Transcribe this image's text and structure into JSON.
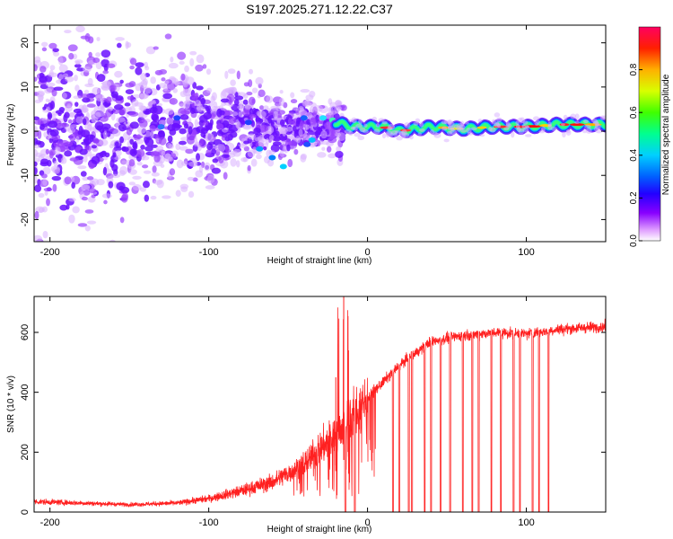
{
  "title": "S197.2025.271.12.22.C37",
  "chart_data": [
    {
      "type": "heatmap",
      "panel": "spectrogram",
      "xlabel": "Height of straight line (km)",
      "ylabel": "Frequency (Hz)",
      "xlim": [
        -210,
        150
      ],
      "ylim": [
        -25,
        24
      ],
      "xticks": [
        -200,
        -100,
        0,
        100
      ],
      "yticks": [
        -20,
        -10,
        0,
        10,
        20
      ],
      "colorbar": {
        "label": "Normalized spectral amplitude",
        "range": [
          0.0,
          1.0
        ],
        "ticks": [
          0.0,
          0.2,
          0.4,
          0.6,
          0.8
        ],
        "colors": [
          "#ffffff",
          "#e0a0ff",
          "#8800ff",
          "#2200ff",
          "#0000ff",
          "#00c8ff",
          "#00ff9a",
          "#44ff00",
          "#d8ff00",
          "#ffb000",
          "#ff0000",
          "#ff0060"
        ]
      },
      "ridge": {
        "description": "narrow band near 0-2 Hz above ~-20 km",
        "x": [
          -20,
          -10,
          0,
          10,
          20,
          40,
          60,
          80,
          100,
          120,
          150
        ],
        "freq": [
          2,
          1,
          1,
          1,
          0,
          1,
          0.5,
          1,
          1,
          1.5,
          1.5
        ]
      },
      "scatter_band": {
        "description": "broadband speckle decreasing with height",
        "x": [
          -210,
          -150,
          -100,
          -60,
          -30
        ],
        "spread": [
          22,
          20,
          13,
          8,
          6
        ]
      }
    },
    {
      "type": "line",
      "panel": "snr",
      "xlabel": "Height of straight line (km)",
      "ylabel": "SNR (10 * v/v)",
      "xlim": [
        -210,
        150
      ],
      "ylim": [
        0,
        720
      ],
      "xticks": [
        -200,
        -100,
        0,
        100
      ],
      "yticks": [
        0,
        200,
        400,
        600
      ],
      "color": "#ff2020",
      "envelope": {
        "x": [
          -210,
          -180,
          -150,
          -120,
          -100,
          -80,
          -60,
          -40,
          -20,
          0,
          20,
          40,
          60,
          80,
          100,
          120,
          150
        ],
        "values": [
          35,
          30,
          25,
          30,
          45,
          70,
          100,
          160,
          260,
          380,
          490,
          570,
          590,
          600,
          595,
          610,
          620
        ]
      },
      "dropouts": [
        -14,
        -8,
        16,
        20,
        26,
        28,
        36,
        40,
        46,
        52,
        60,
        66,
        70,
        78,
        84,
        92,
        96,
        104,
        108,
        114
      ],
      "spikes": [
        {
          "x": -20,
          "value": 450
        },
        {
          "x": -15,
          "value": 720
        },
        {
          "x": -12,
          "value": 540
        }
      ]
    }
  ]
}
